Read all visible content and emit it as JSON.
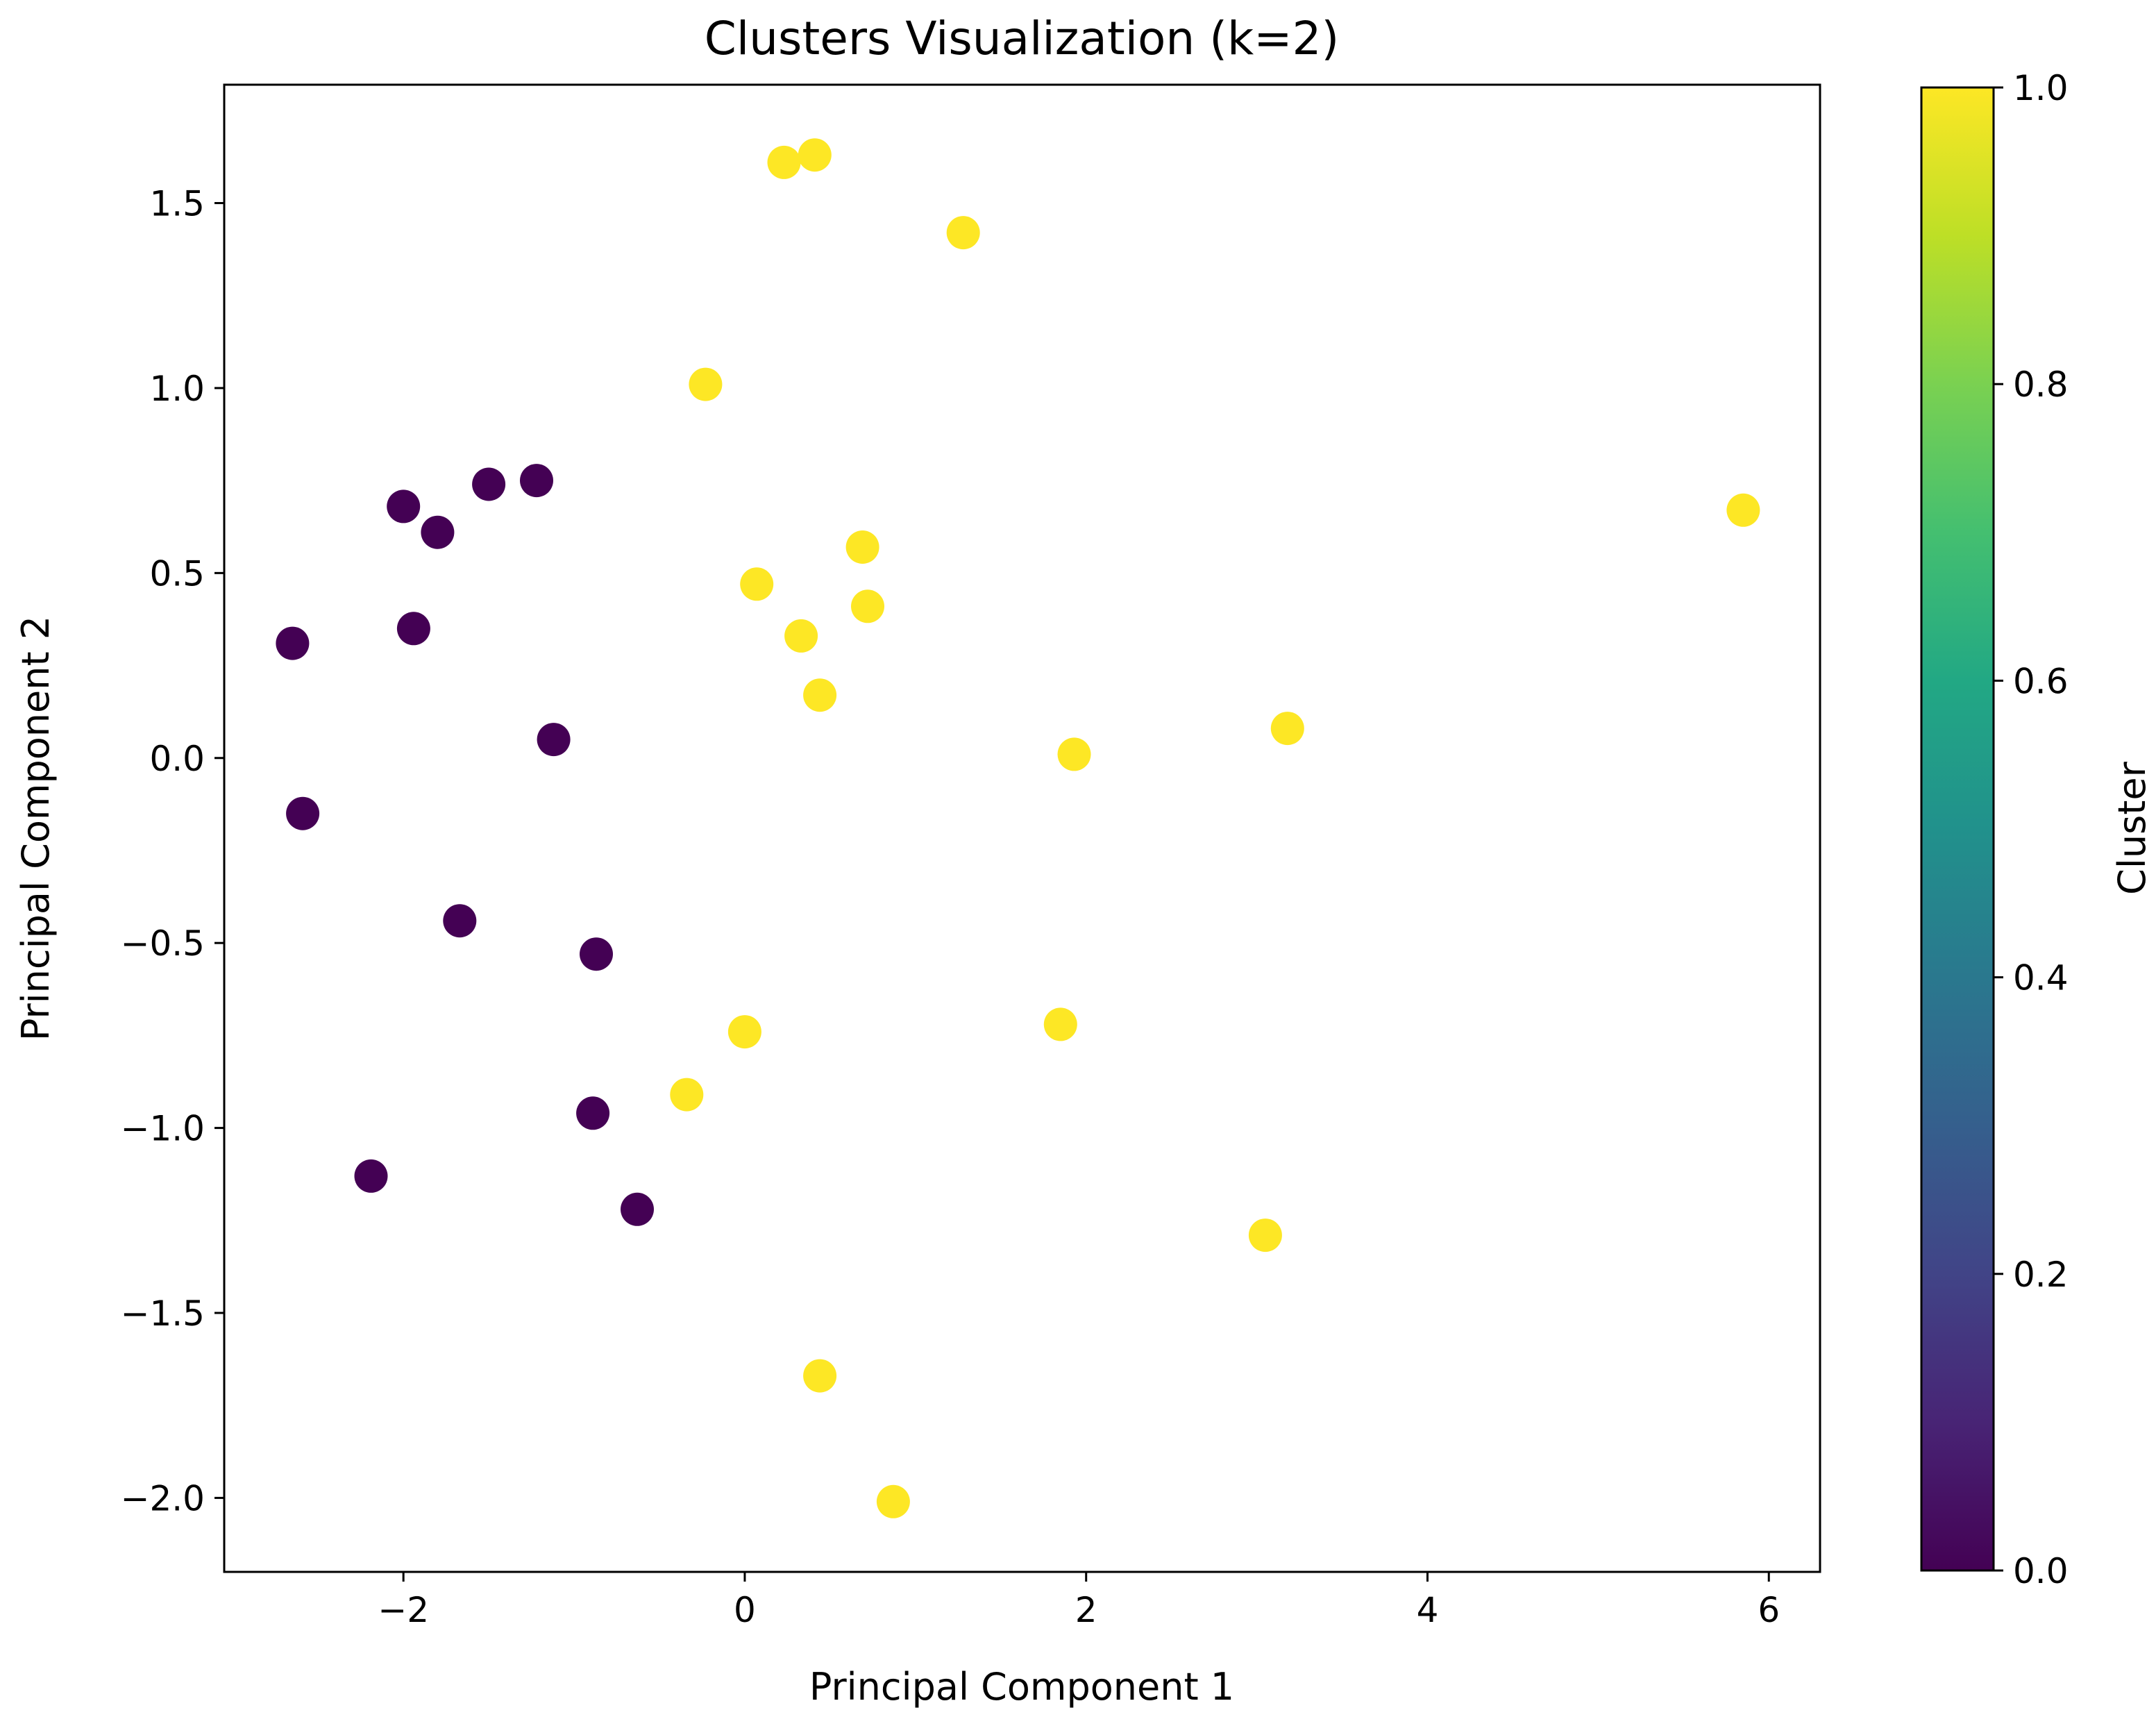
{
  "chart_data": {
    "type": "scatter",
    "title": "Clusters Visualization (k=2)",
    "xlabel": "Principal Component 1",
    "ylabel": "Principal Component 2",
    "xlim": [
      -3.05,
      6.3
    ],
    "ylim": [
      -2.2,
      1.82
    ],
    "xticks": [
      -2,
      0,
      2,
      4,
      6
    ],
    "yticks": [
      -2.0,
      -1.5,
      -1.0,
      -0.5,
      0.0,
      0.5,
      1.0,
      1.5
    ],
    "xtick_labels": [
      "−2",
      "0",
      "2",
      "4",
      "6"
    ],
    "ytick_labels": [
      "−2.0",
      "−1.5",
      "−1.0",
      "−0.5",
      "0.0",
      "0.5",
      "1.0",
      "1.5"
    ],
    "grid": false,
    "colorbar": {
      "label": "Cluster",
      "colormap": "viridis",
      "range": [
        0.0,
        1.0
      ],
      "ticks": [
        0.0,
        0.2,
        0.4,
        0.6,
        0.8,
        1.0
      ],
      "tick_labels": [
        "0.0",
        "0.2",
        "0.4",
        "0.6",
        "0.8",
        "1.0"
      ]
    },
    "colors": {
      "cluster_0": "#440154",
      "cluster_1": "#fde725"
    },
    "points": [
      {
        "x": -2.65,
        "y": 0.31,
        "cluster": 0
      },
      {
        "x": -2.59,
        "y": -0.15,
        "cluster": 0
      },
      {
        "x": -2.19,
        "y": -1.13,
        "cluster": 0
      },
      {
        "x": -2.0,
        "y": 0.68,
        "cluster": 0
      },
      {
        "x": -1.94,
        "y": 0.35,
        "cluster": 0
      },
      {
        "x": -1.8,
        "y": 0.61,
        "cluster": 0
      },
      {
        "x": -1.67,
        "y": -0.44,
        "cluster": 0
      },
      {
        "x": -1.5,
        "y": 0.74,
        "cluster": 0
      },
      {
        "x": -1.22,
        "y": 0.75,
        "cluster": 0
      },
      {
        "x": -1.12,
        "y": 0.05,
        "cluster": 0
      },
      {
        "x": -0.87,
        "y": -0.53,
        "cluster": 0
      },
      {
        "x": -0.89,
        "y": -0.96,
        "cluster": 0
      },
      {
        "x": -0.63,
        "y": -1.22,
        "cluster": 0
      },
      {
        "x": 0.23,
        "y": 1.61,
        "cluster": 1
      },
      {
        "x": 0.41,
        "y": 1.63,
        "cluster": 1
      },
      {
        "x": 1.28,
        "y": 1.42,
        "cluster": 1
      },
      {
        "x": -0.23,
        "y": 1.01,
        "cluster": 1
      },
      {
        "x": 5.85,
        "y": 0.67,
        "cluster": 1
      },
      {
        "x": 0.69,
        "y": 0.57,
        "cluster": 1
      },
      {
        "x": 0.07,
        "y": 0.47,
        "cluster": 1
      },
      {
        "x": 0.72,
        "y": 0.41,
        "cluster": 1
      },
      {
        "x": 0.33,
        "y": 0.33,
        "cluster": 1
      },
      {
        "x": 0.44,
        "y": 0.17,
        "cluster": 1
      },
      {
        "x": 3.18,
        "y": 0.08,
        "cluster": 1
      },
      {
        "x": 1.93,
        "y": 0.01,
        "cluster": 1
      },
      {
        "x": 1.85,
        "y": -0.72,
        "cluster": 1
      },
      {
        "x": 0.0,
        "y": -0.74,
        "cluster": 1
      },
      {
        "x": -0.34,
        "y": -0.91,
        "cluster": 1
      },
      {
        "x": 3.05,
        "y": -1.29,
        "cluster": 1
      },
      {
        "x": 0.44,
        "y": -1.67,
        "cluster": 1
      },
      {
        "x": 0.87,
        "y": -2.01,
        "cluster": 1
      }
    ]
  }
}
